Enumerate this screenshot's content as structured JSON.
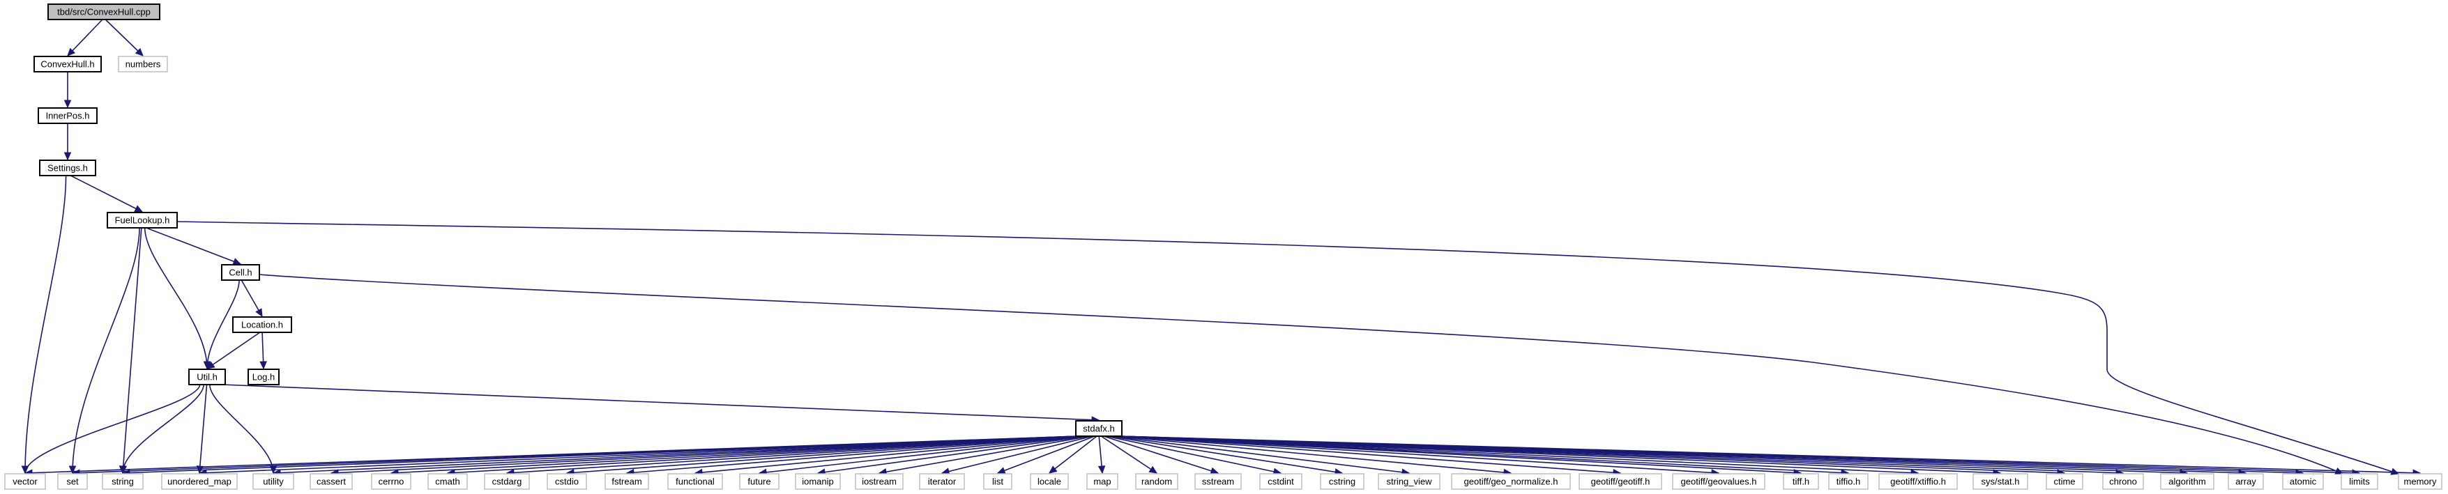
{
  "diagram": {
    "type": "include-dependency-graph",
    "colors": {
      "edge": "#191970",
      "root_fill": "#bfbfbf",
      "node_border": "#000000",
      "external_border": "#bfbfbf"
    },
    "nodes": [
      {
        "id": "root",
        "label": "tbd/src/ConvexHull.cpp",
        "kind": "root"
      },
      {
        "id": "convexhull",
        "label": "ConvexHull.h",
        "kind": "local"
      },
      {
        "id": "numbers",
        "label": "numbers",
        "kind": "sys"
      },
      {
        "id": "innerpos",
        "label": "InnerPos.h",
        "kind": "local"
      },
      {
        "id": "settings",
        "label": "Settings.h",
        "kind": "local"
      },
      {
        "id": "fuellookup",
        "label": "FuelLookup.h",
        "kind": "local"
      },
      {
        "id": "cell",
        "label": "Cell.h",
        "kind": "local"
      },
      {
        "id": "location",
        "label": "Location.h",
        "kind": "local"
      },
      {
        "id": "log",
        "label": "Log.h",
        "kind": "local"
      },
      {
        "id": "util",
        "label": "Util.h",
        "kind": "local"
      },
      {
        "id": "stdafx",
        "label": "stdafx.h",
        "kind": "local"
      },
      {
        "id": "vector",
        "label": "vector",
        "kind": "sys"
      },
      {
        "id": "set",
        "label": "set",
        "kind": "sys"
      },
      {
        "id": "string",
        "label": "string",
        "kind": "sys"
      },
      {
        "id": "unordered_map",
        "label": "unordered_map",
        "kind": "sys"
      },
      {
        "id": "utility",
        "label": "utility",
        "kind": "sys"
      },
      {
        "id": "cassert",
        "label": "cassert",
        "kind": "sys"
      },
      {
        "id": "cerrno",
        "label": "cerrno",
        "kind": "sys"
      },
      {
        "id": "cmath",
        "label": "cmath",
        "kind": "sys"
      },
      {
        "id": "cstdarg",
        "label": "cstdarg",
        "kind": "sys"
      },
      {
        "id": "cstdio",
        "label": "cstdio",
        "kind": "sys"
      },
      {
        "id": "fstream",
        "label": "fstream",
        "kind": "sys"
      },
      {
        "id": "functional",
        "label": "functional",
        "kind": "sys"
      },
      {
        "id": "future",
        "label": "future",
        "kind": "sys"
      },
      {
        "id": "iomanip",
        "label": "iomanip",
        "kind": "sys"
      },
      {
        "id": "iostream",
        "label": "iostream",
        "kind": "sys"
      },
      {
        "id": "iterator",
        "label": "iterator",
        "kind": "sys"
      },
      {
        "id": "list",
        "label": "list",
        "kind": "sys"
      },
      {
        "id": "locale",
        "label": "locale",
        "kind": "sys"
      },
      {
        "id": "map",
        "label": "map",
        "kind": "sys"
      },
      {
        "id": "random",
        "label": "random",
        "kind": "sys"
      },
      {
        "id": "sstream",
        "label": "sstream",
        "kind": "sys"
      },
      {
        "id": "cstdint",
        "label": "cstdint",
        "kind": "sys"
      },
      {
        "id": "cstring",
        "label": "cstring",
        "kind": "sys"
      },
      {
        "id": "string_view",
        "label": "string_view",
        "kind": "sys"
      },
      {
        "id": "geo_normalize",
        "label": "geotiff/geo_normalize.h",
        "kind": "sys"
      },
      {
        "id": "geotiff_h",
        "label": "geotiff/geotiff.h",
        "kind": "sys"
      },
      {
        "id": "geovalues",
        "label": "geotiff/geovalues.h",
        "kind": "sys"
      },
      {
        "id": "tiff_h",
        "label": "tiff.h",
        "kind": "sys"
      },
      {
        "id": "tiffio_h",
        "label": "tiffio.h",
        "kind": "sys"
      },
      {
        "id": "xtiffio",
        "label": "geotiff/xtiffio.h",
        "kind": "sys"
      },
      {
        "id": "sys_stat",
        "label": "sys/stat.h",
        "kind": "sys"
      },
      {
        "id": "ctime",
        "label": "ctime",
        "kind": "sys"
      },
      {
        "id": "chrono",
        "label": "chrono",
        "kind": "sys"
      },
      {
        "id": "algorithm",
        "label": "algorithm",
        "kind": "sys"
      },
      {
        "id": "array",
        "label": "array",
        "kind": "sys"
      },
      {
        "id": "atomic",
        "label": "atomic",
        "kind": "sys"
      },
      {
        "id": "limits",
        "label": "limits",
        "kind": "sys"
      },
      {
        "id": "memory",
        "label": "memory",
        "kind": "sys"
      }
    ],
    "edges": [
      [
        "root",
        "convexhull"
      ],
      [
        "root",
        "numbers"
      ],
      [
        "convexhull",
        "innerpos"
      ],
      [
        "innerpos",
        "settings"
      ],
      [
        "settings",
        "vector"
      ],
      [
        "settings",
        "fuellookup"
      ],
      [
        "fuellookup",
        "cell"
      ],
      [
        "fuellookup",
        "util"
      ],
      [
        "fuellookup",
        "set"
      ],
      [
        "fuellookup",
        "string"
      ],
      [
        "fuellookup",
        "memory"
      ],
      [
        "cell",
        "location"
      ],
      [
        "cell",
        "util"
      ],
      [
        "cell",
        "limits"
      ],
      [
        "location",
        "util"
      ],
      [
        "location",
        "log"
      ],
      [
        "util",
        "stdafx"
      ],
      [
        "util",
        "vector"
      ],
      [
        "util",
        "string"
      ],
      [
        "util",
        "unordered_map"
      ],
      [
        "util",
        "utility"
      ],
      [
        "stdafx",
        "vector"
      ],
      [
        "stdafx",
        "set"
      ],
      [
        "stdafx",
        "string"
      ],
      [
        "stdafx",
        "unordered_map"
      ],
      [
        "stdafx",
        "utility"
      ],
      [
        "stdafx",
        "cassert"
      ],
      [
        "stdafx",
        "cerrno"
      ],
      [
        "stdafx",
        "cmath"
      ],
      [
        "stdafx",
        "cstdarg"
      ],
      [
        "stdafx",
        "cstdio"
      ],
      [
        "stdafx",
        "fstream"
      ],
      [
        "stdafx",
        "functional"
      ],
      [
        "stdafx",
        "future"
      ],
      [
        "stdafx",
        "iomanip"
      ],
      [
        "stdafx",
        "iostream"
      ],
      [
        "stdafx",
        "iterator"
      ],
      [
        "stdafx",
        "list"
      ],
      [
        "stdafx",
        "locale"
      ],
      [
        "stdafx",
        "map"
      ],
      [
        "stdafx",
        "random"
      ],
      [
        "stdafx",
        "sstream"
      ],
      [
        "stdafx",
        "cstdint"
      ],
      [
        "stdafx",
        "cstring"
      ],
      [
        "stdafx",
        "string_view"
      ],
      [
        "stdafx",
        "geo_normalize"
      ],
      [
        "stdafx",
        "geotiff_h"
      ],
      [
        "stdafx",
        "geovalues"
      ],
      [
        "stdafx",
        "tiff_h"
      ],
      [
        "stdafx",
        "tiffio_h"
      ],
      [
        "stdafx",
        "xtiffio"
      ],
      [
        "stdafx",
        "sys_stat"
      ],
      [
        "stdafx",
        "ctime"
      ],
      [
        "stdafx",
        "chrono"
      ],
      [
        "stdafx",
        "algorithm"
      ],
      [
        "stdafx",
        "array"
      ],
      [
        "stdafx",
        "atomic"
      ],
      [
        "stdafx",
        "limits"
      ],
      [
        "stdafx",
        "memory"
      ]
    ]
  }
}
